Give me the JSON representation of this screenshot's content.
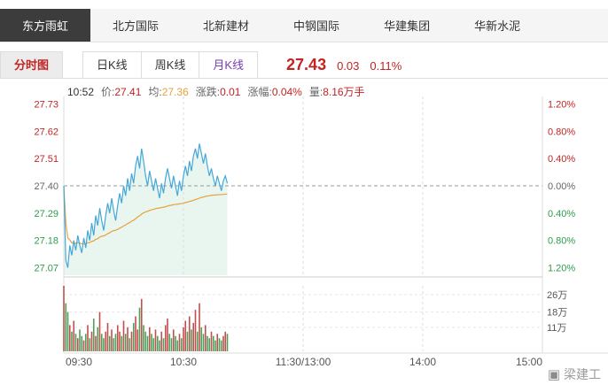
{
  "colors": {
    "red": "#c22424",
    "green": "#2e9b4f",
    "gray_label": "#666666",
    "price_line": "#45a8d8",
    "avg_line": "#e6a23c",
    "fill": "#e9f5ef",
    "grid": "#dddddd",
    "baseline": "#999999",
    "vol_up": "#c0504d",
    "vol_down": "#4f9e5a",
    "active_tab_bg": "#3c3c3c"
  },
  "top_tabs": [
    {
      "label": "东方雨虹",
      "active": true
    },
    {
      "label": "北方国际",
      "active": false
    },
    {
      "label": "北新建材",
      "active": false
    },
    {
      "label": "中钢国际",
      "active": false
    },
    {
      "label": "华建集团",
      "active": false
    },
    {
      "label": "华新水泥",
      "active": false
    }
  ],
  "sub_tabs": [
    {
      "label": "分时图",
      "style": "active"
    },
    {
      "label": "日K线",
      "style": "kline"
    },
    {
      "label": "周K线",
      "style": "kline"
    },
    {
      "label": "月K线",
      "style": "kline visited"
    }
  ],
  "quote": {
    "price": "27.43",
    "change": "0.03",
    "change_pct": "0.11%"
  },
  "info_bar": {
    "time": "10:52",
    "segments": [
      {
        "label": "价:",
        "value": "27.41",
        "color": "red"
      },
      {
        "label": "均:",
        "value": "27.36",
        "color": "orange"
      },
      {
        "label": "涨跌:",
        "value": "0.01",
        "color": "red"
      },
      {
        "label": "涨幅:",
        "value": "0.04%",
        "color": "red"
      },
      {
        "label": "量:",
        "value": "8.16万手",
        "color": "red"
      }
    ]
  },
  "watermark": {
    "icon": "▣",
    "text": "梁建工"
  },
  "chart_data": {
    "type": "line",
    "title": "东方雨虹 分时图 (intraday price/average/volume)",
    "x_axis": {
      "labels": [
        "09:30",
        "10:30",
        "11:30/13:00",
        "14:00",
        "15:00"
      ],
      "fractions": [
        0,
        0.25,
        0.5,
        0.75,
        1
      ],
      "total_minutes": 240
    },
    "price_axis": {
      "left_labels": [
        "27.73",
        "27.62",
        "27.51",
        "27.40",
        "27.29",
        "27.18",
        "27.07"
      ],
      "right_labels": [
        "1.20%",
        "0.80%",
        "0.40%",
        "0.00%",
        "0.40%",
        "0.80%",
        "1.20%"
      ],
      "min": 27.04,
      "max": 27.76,
      "baseline": 27.4
    },
    "volume_axis": {
      "labels": [
        "26万",
        "18万",
        "11万"
      ],
      "values": [
        26,
        18,
        11
      ],
      "max": 30
    },
    "series": {
      "price": [
        27.4,
        27.1,
        27.07,
        27.16,
        27.12,
        27.18,
        27.14,
        27.2,
        27.16,
        27.13,
        27.19,
        27.15,
        27.22,
        27.18,
        27.25,
        27.2,
        27.28,
        27.24,
        27.31,
        27.26,
        27.22,
        27.28,
        27.33,
        27.29,
        27.35,
        27.3,
        27.26,
        27.32,
        27.37,
        27.33,
        27.4,
        27.36,
        27.43,
        27.38,
        27.45,
        27.41,
        27.48,
        27.52,
        27.47,
        27.55,
        27.5,
        27.44,
        27.4,
        27.46,
        27.42,
        27.38,
        27.43,
        27.39,
        27.35,
        27.41,
        27.37,
        27.43,
        27.47,
        27.43,
        27.39,
        27.44,
        27.4,
        27.36,
        27.42,
        27.38,
        27.44,
        27.48,
        27.44,
        27.5,
        27.46,
        27.52,
        27.55,
        27.51,
        27.57,
        27.53,
        27.49,
        27.53,
        27.48,
        27.44,
        27.47,
        27.43,
        27.4,
        27.44,
        27.41,
        27.38,
        27.42,
        27.44,
        27.41
      ],
      "volume": [
        30,
        22,
        18,
        12,
        9,
        14,
        8,
        6,
        10,
        7,
        5,
        8,
        12,
        6,
        9,
        15,
        7,
        11,
        18,
        8,
        6,
        9,
        13,
        7,
        10,
        6,
        8,
        12,
        9,
        7,
        14,
        8,
        11,
        6,
        9,
        13,
        16,
        10,
        20,
        24,
        12,
        9,
        7,
        11,
        8,
        6,
        10,
        7,
        5,
        9,
        6,
        12,
        15,
        8,
        6,
        10,
        7,
        5,
        8,
        6,
        11,
        14,
        9,
        16,
        10,
        13,
        19,
        9,
        22,
        11,
        8,
        12,
        7,
        6,
        9,
        7,
        5,
        8,
        6,
        5,
        7,
        9,
        8
      ]
    },
    "grid": "baseline-dashed + vertical time gridlines",
    "legend_position": "none"
  }
}
